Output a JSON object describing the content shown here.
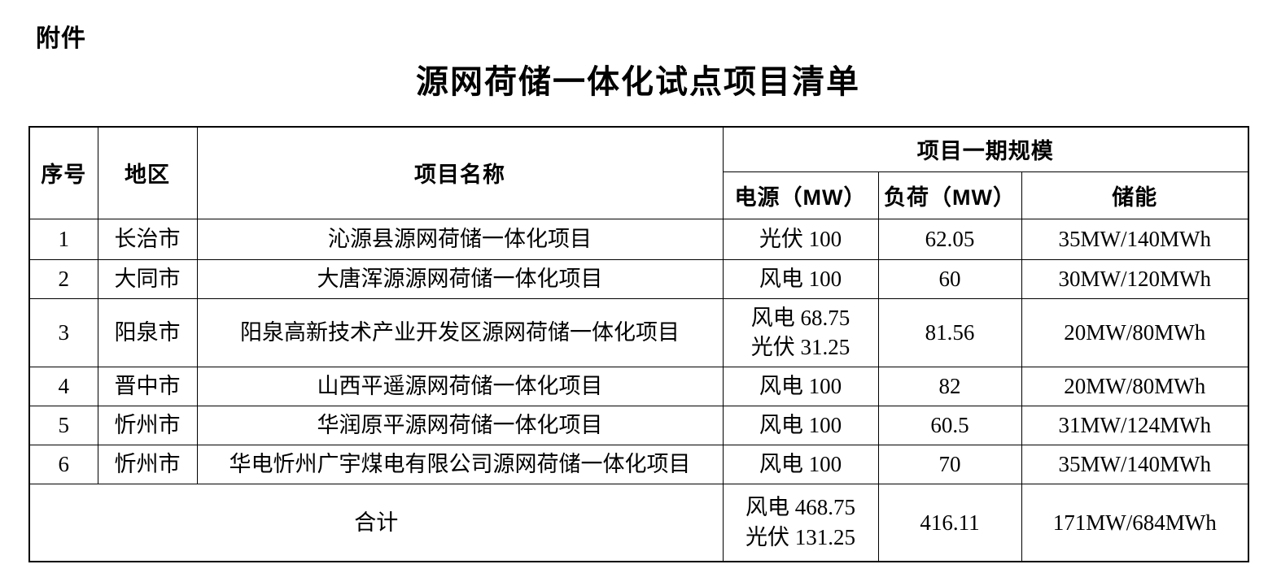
{
  "attachment_label": "附件",
  "title": "源网荷储一体化试点项目清单",
  "table": {
    "headers": {
      "index": "序号",
      "region": "地区",
      "project_name": "项目名称",
      "phase_scale": "项目一期规模",
      "power": "电源（MW）",
      "load": "负荷（MW）",
      "storage": "储能"
    },
    "rows": [
      {
        "index": "1",
        "region": "长治市",
        "name": "沁源县源网荷储一体化项目",
        "power": [
          "光伏 100"
        ],
        "load": "62.05",
        "storage": "35MW/140MWh"
      },
      {
        "index": "2",
        "region": "大同市",
        "name": "大唐浑源源网荷储一体化项目",
        "power": [
          "风电 100"
        ],
        "load": "60",
        "storage": "30MW/120MWh"
      },
      {
        "index": "3",
        "region": "阳泉市",
        "name": "阳泉高新技术产业开发区源网荷储一体化项目",
        "power": [
          "风电 68.75",
          "光伏 31.25"
        ],
        "load": "81.56",
        "storage": "20MW/80MWh"
      },
      {
        "index": "4",
        "region": "晋中市",
        "name": "山西平遥源网荷储一体化项目",
        "power": [
          "风电 100"
        ],
        "load": "82",
        "storage": "20MW/80MWh"
      },
      {
        "index": "5",
        "region": "忻州市",
        "name": "华润原平源网荷储一体化项目",
        "power": [
          "风电 100"
        ],
        "load": "60.5",
        "storage": "31MW/124MWh"
      },
      {
        "index": "6",
        "region": "忻州市",
        "name": "华电忻州广宇煤电有限公司源网荷储一体化项目",
        "power": [
          "风电 100"
        ],
        "load": "70",
        "storage": "35MW/140MWh"
      }
    ],
    "total": {
      "label": "合计",
      "power": [
        "风电 468.75",
        "光伏 131.25"
      ],
      "load": "416.11",
      "storage": "171MW/684MWh"
    }
  }
}
